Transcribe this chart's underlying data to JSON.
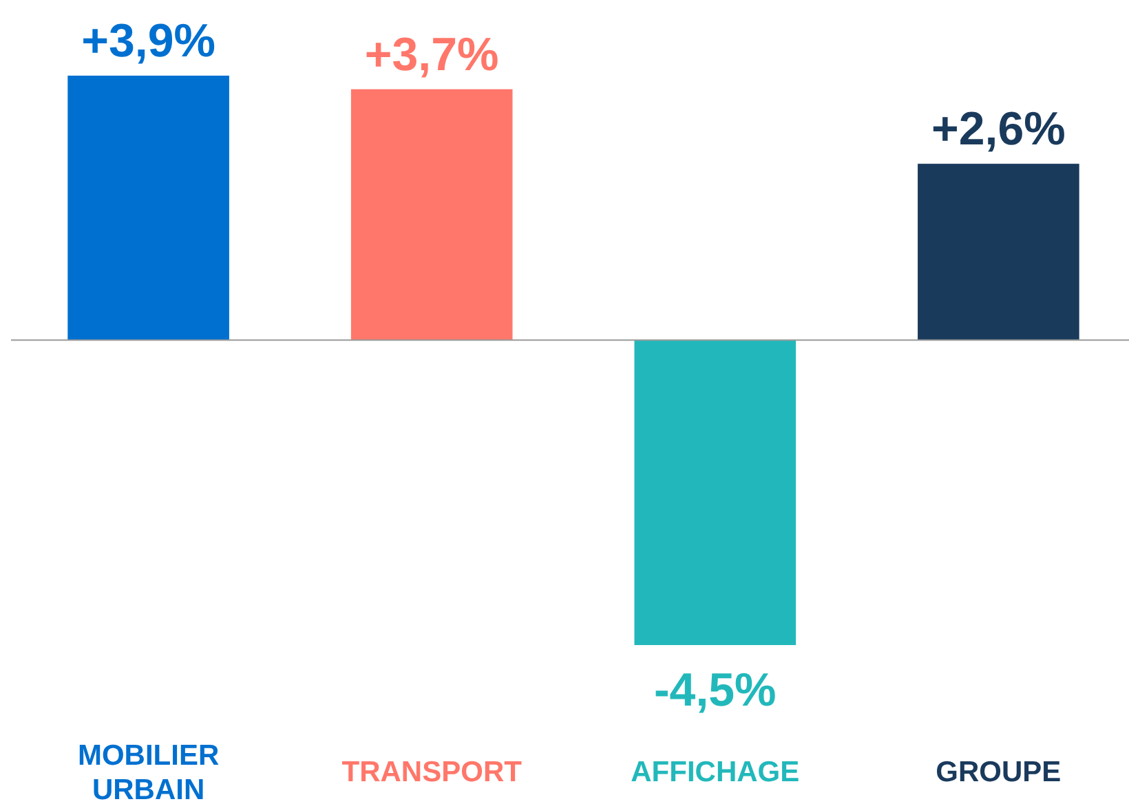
{
  "chart_data": {
    "type": "bar",
    "categories": [
      "MOBILIER URBAIN",
      "TRANSPORT",
      "AFFICHAGE",
      "GROUPE"
    ],
    "values": [
      3.9,
      3.7,
      -4.5,
      2.6
    ],
    "colors": [
      "#0070d0",
      "#ff776a",
      "#22b8bb",
      "#1a3a5c"
    ],
    "value_labels": [
      "+3,9%",
      "+3,7%",
      "-4,5%",
      "+2,6%"
    ]
  }
}
